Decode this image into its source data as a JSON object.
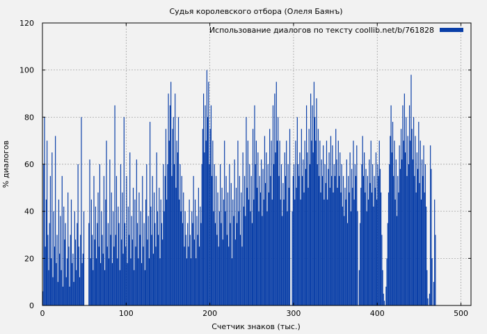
{
  "chart_data": {
    "type": "bar",
    "title": "Судья королевского отбора (Олеля Баянъ)",
    "xlabel": "Счетчик знаков (тыс.)",
    "ylabel": "% диалогов",
    "xlim": [
      0,
      512
    ],
    "ylim": [
      0,
      120
    ],
    "xticks": [
      0,
      100,
      200,
      300,
      400,
      500
    ],
    "yticks": [
      0,
      20,
      40,
      60,
      80,
      100,
      120
    ],
    "grid": true,
    "legend_position": "top-right",
    "bar_width": 1,
    "series": [
      {
        "name": "Использование диалогов по тексту coollib.net/b/761828",
        "color": "#0a3fa8",
        "values": [
          6,
          60,
          80,
          25,
          45,
          70,
          30,
          15,
          35,
          55,
          20,
          65,
          12,
          40,
          25,
          72,
          18,
          30,
          10,
          45,
          22,
          38,
          15,
          55,
          8,
          42,
          28,
          35,
          12,
          20,
          48,
          25,
          8,
          30,
          45,
          18,
          22,
          10,
          40,
          28,
          15,
          35,
          60,
          25,
          12,
          30,
          80,
          18,
          22,
          40,
          0,
          0,
          0,
          0,
          0,
          35,
          62,
          20,
          45,
          30,
          15,
          55,
          28,
          42,
          20,
          35,
          48,
          25,
          60,
          18,
          40,
          30,
          22,
          55,
          15,
          45,
          70,
          25,
          35,
          20,
          62,
          30,
          48,
          18,
          40,
          25,
          85,
          30,
          55,
          20,
          42,
          35,
          15,
          60,
          28,
          48,
          22,
          80,
          35,
          25,
          55,
          18,
          42,
          30,
          65,
          20,
          38,
          28,
          50,
          15,
          45,
          25,
          62,
          35,
          20,
          48,
          30,
          40,
          18,
          55,
          25,
          35,
          15,
          45,
          60,
          28,
          38,
          20,
          78,
          42,
          30,
          55,
          22,
          48,
          35,
          25,
          65,
          40,
          30,
          50,
          20,
          45,
          35,
          28,
          60,
          40,
          55,
          75,
          45,
          60,
          90,
          70,
          85,
          95,
          55,
          75,
          80,
          60,
          90,
          50,
          70,
          65,
          80,
          45,
          60,
          40,
          55,
          35,
          48,
          25,
          40,
          30,
          20,
          35,
          25,
          45,
          30,
          20,
          40,
          35,
          55,
          28,
          45,
          20,
          38,
          30,
          50,
          25,
          42,
          35,
          60,
          75,
          90,
          65,
          85,
          70,
          100,
          80,
          95,
          60,
          75,
          85,
          55,
          70,
          40,
          60,
          35,
          55,
          30,
          48,
          25,
          40,
          60,
          35,
          50,
          28,
          45,
          70,
          40,
          55,
          30,
          48,
          25,
          60,
          35,
          52,
          20,
          45,
          38,
          62,
          28,
          50,
          35,
          70,
          40,
          55,
          30,
          48,
          25,
          65,
          42,
          55,
          38,
          80,
          50,
          70,
          45,
          60,
          40,
          55,
          35,
          75,
          45,
          85,
          60,
          70,
          50,
          65,
          40,
          55,
          48,
          62,
          38,
          58,
          45,
          72,
          52,
          65,
          40,
          60,
          48,
          75,
          55,
          70,
          45,
          85,
          60,
          90,
          65,
          95,
          70,
          80,
          55,
          70,
          45,
          60,
          38,
          52,
          45,
          65,
          55,
          70,
          40,
          60,
          50,
          75,
          0,
          0,
          40,
          55,
          60,
          45,
          70,
          50,
          80,
          60,
          55,
          65,
          45,
          75,
          55,
          62,
          48,
          70,
          58,
          85,
          65,
          50,
          75,
          60,
          90,
          70,
          85,
          65,
          95,
          80,
          70,
          88,
          60,
          75,
          55,
          70,
          48,
          62,
          55,
          68,
          45,
          60,
          52,
          70,
          45,
          58,
          65,
          50,
          72,
          55,
          68,
          48,
          60,
          55,
          75,
          62,
          50,
          70,
          55,
          65,
          48,
          60,
          42,
          55,
          38,
          50,
          45,
          62,
          35,
          55,
          48,
          65,
          40,
          58,
          50,
          70,
          45,
          60,
          55,
          68,
          40,
          0,
          15,
          35,
          50,
          60,
          72,
          55,
          65,
          48,
          58,
          40,
          55,
          45,
          62,
          52,
          70,
          48,
          60,
          42,
          55,
          50,
          65,
          45,
          60,
          55,
          70,
          58,
          48,
          30,
          15,
          5,
          2,
          0,
          8,
          20,
          35,
          48,
          60,
          72,
          85,
          65,
          78,
          55,
          70,
          45,
          62,
          38,
          55,
          48,
          68,
          58,
          75,
          62,
          85,
          70,
          90,
          65,
          80,
          55,
          72,
          60,
          85,
          70,
          98,
          75,
          62,
          80,
          55,
          72,
          48,
          65,
          58,
          78,
          52,
          70,
          45,
          62,
          55,
          68,
          48,
          60,
          42,
          15,
          3,
          0,
          5,
          68,
          58,
          20,
          0,
          10,
          45,
          30,
          0,
          0
        ]
      }
    ]
  }
}
